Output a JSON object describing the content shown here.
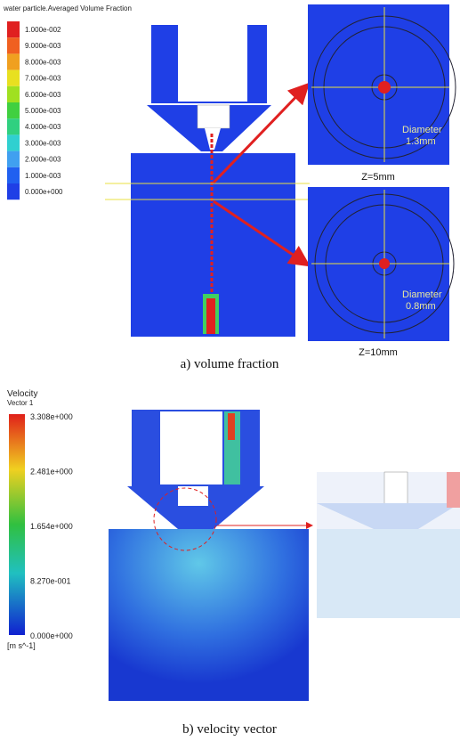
{
  "panel_a": {
    "legend_title": "water particle.Averaged Volume Fraction",
    "legend_labels": [
      "1.000e-002",
      "9.000e-003",
      "8.000e-003",
      "7.000e-003",
      "6.000e-003",
      "5.000e-003",
      "4.000e-003",
      "3.000e-003",
      "2.000e-003",
      "1.000e-003",
      "0.000e+000"
    ],
    "zoom_1": {
      "diameter_label": "Diameter",
      "diameter_value": "1.3mm",
      "z_label": "Z=5mm"
    },
    "zoom_2": {
      "diameter_label": "Diameter",
      "diameter_value": "0.8mm",
      "z_label": "Z=10mm"
    },
    "caption": "a)  volume  fraction"
  },
  "panel_b": {
    "legend_title": "Velocity",
    "legend_subtitle": "Vector 1",
    "legend_labels": [
      "3.308e+000",
      "2.481e+000",
      "1.654e+000",
      "8.270e-001",
      "0.000e+000"
    ],
    "unit": "[m s^-1]",
    "caption": "b)  velocity  vector"
  }
}
